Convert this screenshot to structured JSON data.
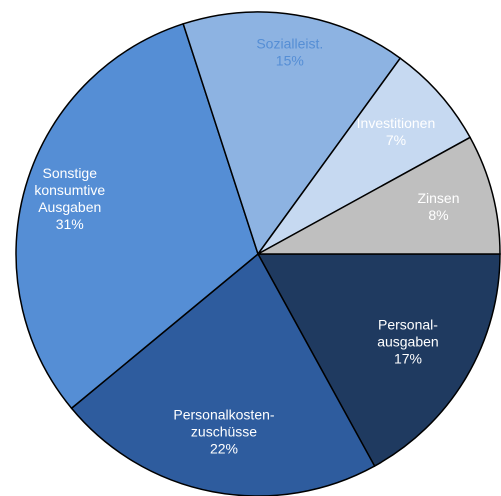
{
  "chart_data": {
    "type": "pie",
    "categories": [
      [
        "Personal-",
        "ausgaben"
      ],
      [
        "Personalkosten-",
        "zuschüsse"
      ],
      [
        "Sonstige",
        "konsumtive",
        "Ausgaben"
      ],
      [
        "Sozialleist."
      ],
      [
        "Investitionen"
      ],
      [
        "Zinsen"
      ]
    ],
    "values": [
      17,
      22,
      31,
      15,
      7,
      8
    ],
    "value_labels": [
      "17%",
      "22%",
      "31%",
      "15%",
      "7%",
      "8%"
    ],
    "colors": [
      "#1f3a60",
      "#2e5c9e",
      "#558ed5",
      "#8db3e2",
      "#c6d9f1",
      "#bfbfbf"
    ],
    "label_colors": [
      "#ffffff",
      "#ffffff",
      "#ffffff",
      "#558ed5",
      "#ffffff",
      "#ffffff"
    ]
  }
}
